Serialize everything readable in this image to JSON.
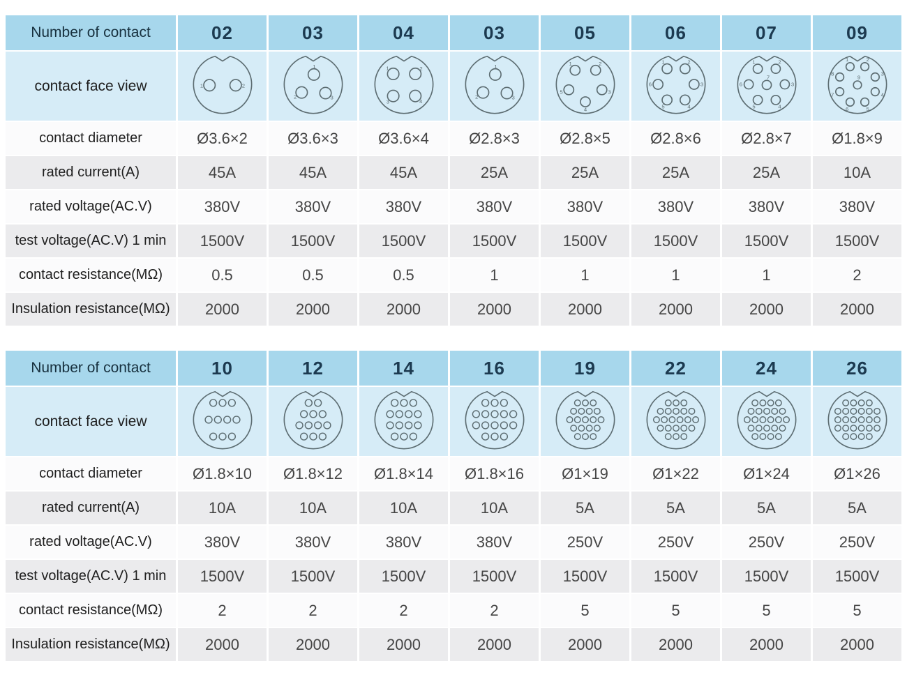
{
  "colors": {
    "header-bg": "#a7d7ec",
    "face-bg": "#d6ecf7",
    "row-white": "#fbfbfc",
    "row-gray": "#ebebed",
    "header-num-text": "#1c3a50",
    "header-label-text": "#17303e",
    "label-text": "#1e1e1e",
    "value-text": "#454545",
    "connector-stroke": "#5d6d72",
    "page-bg": "#ffffff"
  },
  "tables": [
    {
      "row_labels": [
        "Number of contact",
        "contact face view",
        "contact diameter",
        "rated current(A)",
        "rated voltage(AC.V)",
        "test voltage(AC.V) 1 min",
        "contact resistance(MΩ)",
        "Insulation resistance(MΩ)"
      ],
      "columns": [
        {
          "contacts": "02",
          "pins": 2,
          "diameter": "Ø3.6×2",
          "current": "45A",
          "voltage": "380V",
          "test_voltage": "1500V",
          "contact_resistance": "0.5",
          "insulation_resistance": "2000"
        },
        {
          "contacts": "03",
          "pins": 3,
          "diameter": "Ø3.6×3",
          "current": "45A",
          "voltage": "380V",
          "test_voltage": "1500V",
          "contact_resistance": "0.5",
          "insulation_resistance": "2000"
        },
        {
          "contacts": "04",
          "pins": 4,
          "diameter": "Ø3.6×4",
          "current": "45A",
          "voltage": "380V",
          "test_voltage": "1500V",
          "contact_resistance": "0.5",
          "insulation_resistance": "2000"
        },
        {
          "contacts": "03",
          "pins": 3,
          "diameter": "Ø2.8×3",
          "current": "25A",
          "voltage": "380V",
          "test_voltage": "1500V",
          "contact_resistance": "1",
          "insulation_resistance": "2000"
        },
        {
          "contacts": "05",
          "pins": 5,
          "diameter": "Ø2.8×5",
          "current": "25A",
          "voltage": "380V",
          "test_voltage": "1500V",
          "contact_resistance": "1",
          "insulation_resistance": "2000"
        },
        {
          "contacts": "06",
          "pins": 6,
          "diameter": "Ø2.8×6",
          "current": "25A",
          "voltage": "380V",
          "test_voltage": "1500V",
          "contact_resistance": "1",
          "insulation_resistance": "2000"
        },
        {
          "contacts": "07",
          "pins": 7,
          "diameter": "Ø2.8×7",
          "current": "25A",
          "voltage": "380V",
          "test_voltage": "1500V",
          "contact_resistance": "1",
          "insulation_resistance": "2000"
        },
        {
          "contacts": "09",
          "pins": 9,
          "diameter": "Ø1.8×9",
          "current": "10A",
          "voltage": "380V",
          "test_voltage": "1500V",
          "contact_resistance": "2",
          "insulation_resistance": "2000"
        }
      ]
    },
    {
      "row_labels": [
        "Number of contact",
        "contact face view",
        "contact diameter",
        "rated current(A)",
        "rated voltage(AC.V)",
        "test voltage(AC.V) 1 min",
        "contact resistance(MΩ)",
        "Insulation resistance(MΩ)"
      ],
      "columns": [
        {
          "contacts": "10",
          "pins": 10,
          "diameter": "Ø1.8×10",
          "current": "10A",
          "voltage": "380V",
          "test_voltage": "1500V",
          "contact_resistance": "2",
          "insulation_resistance": "2000"
        },
        {
          "contacts": "12",
          "pins": 12,
          "diameter": "Ø1.8×12",
          "current": "10A",
          "voltage": "380V",
          "test_voltage": "1500V",
          "contact_resistance": "2",
          "insulation_resistance": "2000"
        },
        {
          "contacts": "14",
          "pins": 14,
          "diameter": "Ø1.8×14",
          "current": "10A",
          "voltage": "380V",
          "test_voltage": "1500V",
          "contact_resistance": "2",
          "insulation_resistance": "2000"
        },
        {
          "contacts": "16",
          "pins": 16,
          "diameter": "Ø1.8×16",
          "current": "10A",
          "voltage": "380V",
          "test_voltage": "1500V",
          "contact_resistance": "2",
          "insulation_resistance": "2000"
        },
        {
          "contacts": "19",
          "pins": 19,
          "diameter": "Ø1×19",
          "current": "5A",
          "voltage": "250V",
          "test_voltage": "1500V",
          "contact_resistance": "5",
          "insulation_resistance": "2000"
        },
        {
          "contacts": "22",
          "pins": 22,
          "diameter": "Ø1×22",
          "current": "5A",
          "voltage": "250V",
          "test_voltage": "1500V",
          "contact_resistance": "5",
          "insulation_resistance": "2000"
        },
        {
          "contacts": "24",
          "pins": 24,
          "diameter": "Ø1×24",
          "current": "5A",
          "voltage": "250V",
          "test_voltage": "1500V",
          "contact_resistance": "5",
          "insulation_resistance": "2000"
        },
        {
          "contacts": "26",
          "pins": 26,
          "diameter": "Ø1×26",
          "current": "5A",
          "voltage": "250V",
          "test_voltage": "1500V",
          "contact_resistance": "5",
          "insulation_resistance": "2000"
        }
      ]
    }
  ]
}
